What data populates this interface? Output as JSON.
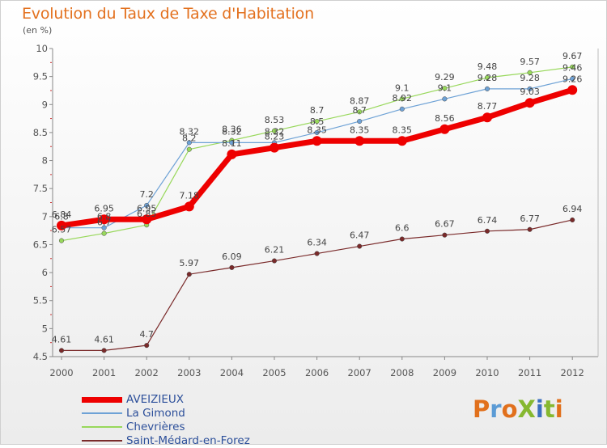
{
  "title": "Evolution du Taux de Taxe d'Habitation",
  "unit": "(en %)",
  "logo": {
    "text": "ProXiti",
    "colors": [
      "#e1701c",
      "#5b9bd5",
      "#e1701c",
      "#86b830",
      "#3c6fbf",
      "#86b830",
      "#e1701c"
    ]
  },
  "chart_data": {
    "type": "line",
    "title": "Evolution du Taux de Taxe d'Habitation",
    "xlabel": "",
    "ylabel": "(en %)",
    "x": [
      "2000",
      "2001",
      "2002",
      "2003",
      "2004",
      "2005",
      "2006",
      "2007",
      "2008",
      "2009",
      "2010",
      "2011",
      "2012"
    ],
    "ylim": [
      4.5,
      10
    ],
    "yticks": [
      "4.5",
      "5",
      "5.5",
      "6",
      "6.5",
      "7",
      "7.5",
      "8",
      "8.5",
      "9",
      "9.5",
      "10"
    ],
    "grid": false,
    "legend_position": "bottom-left",
    "series": [
      {
        "name": "AVEIZIEUX",
        "color": "#ee0000",
        "width": 7,
        "marker": 6,
        "values": [
          6.84,
          6.95,
          6.95,
          7.18,
          8.11,
          8.23,
          8.35,
          8.35,
          8.35,
          8.56,
          8.77,
          9.03,
          9.26
        ],
        "labels": [
          "6.84",
          "6.95",
          "6.95",
          "7.18",
          "8.11",
          "8.23",
          "8.35",
          "8.35",
          "8.35",
          "8.56",
          "8.77",
          "9.03",
          "9.26"
        ]
      },
      {
        "name": "La Gimond",
        "color": "#6ea2d6",
        "width": 1.2,
        "marker": 2.8,
        "values": [
          6.8,
          6.8,
          7.2,
          8.32,
          8.32,
          8.32,
          8.5,
          8.7,
          8.92,
          9.1,
          9.28,
          9.28,
          9.46
        ],
        "labels": [
          "6.8",
          "6.8",
          "7.2",
          "8.32",
          "8.32",
          "8.32",
          "8.5",
          "8.7",
          "8.92",
          "9.1",
          "9.28",
          "9.28",
          "9.46"
        ]
      },
      {
        "name": "Chevrières",
        "color": "#98d85b",
        "width": 1.2,
        "marker": 2.8,
        "values": [
          6.57,
          6.7,
          6.85,
          8.2,
          8.36,
          8.53,
          8.7,
          8.87,
          9.1,
          9.29,
          9.48,
          9.57,
          9.67
        ],
        "labels": [
          "6.57",
          "6.7",
          "6.85",
          "8.2",
          "8.36",
          "8.53",
          "8.7",
          "8.87",
          "9.1",
          "9.29",
          "9.48",
          "9.57",
          "9.67"
        ]
      },
      {
        "name": "Saint-Médard-en-Forez",
        "color": "#7a2a2a",
        "width": 1.2,
        "marker": 2.8,
        "values": [
          4.61,
          4.61,
          4.7,
          5.97,
          6.09,
          6.21,
          6.34,
          6.47,
          6.6,
          6.67,
          6.74,
          6.77,
          6.94
        ],
        "labels": [
          "4.61",
          "4.61",
          "4.7",
          "5.97",
          "6.09",
          "6.21",
          "6.34",
          "6.47",
          "6.6",
          "6.67",
          "6.74",
          "6.77",
          "6.94"
        ]
      }
    ]
  }
}
